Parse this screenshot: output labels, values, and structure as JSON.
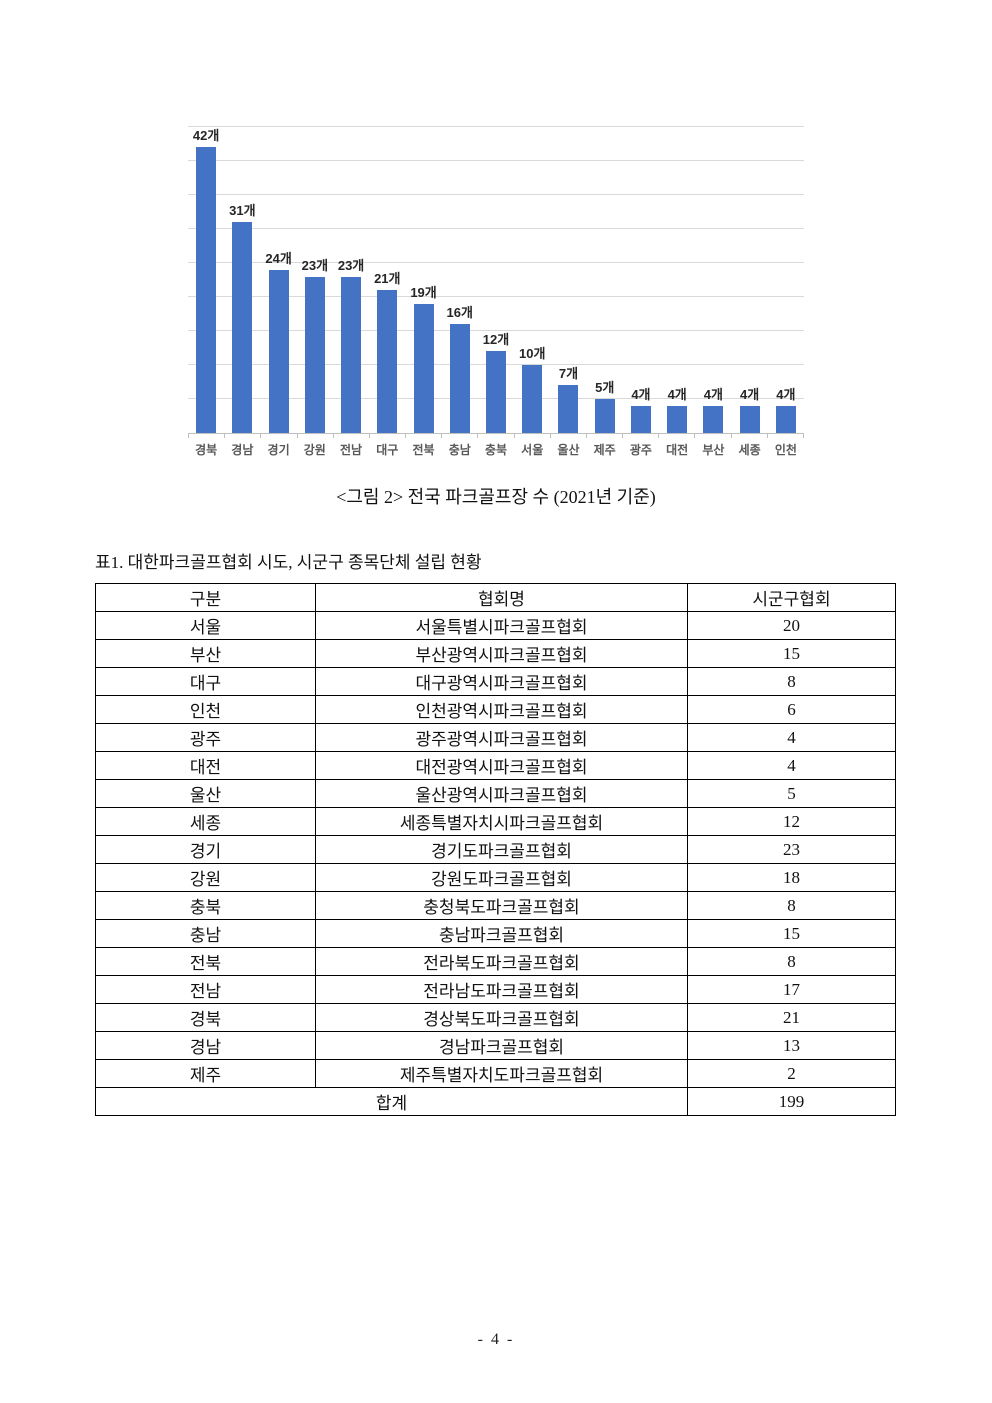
{
  "chart_data": {
    "type": "bar",
    "categories": [
      "경북",
      "경남",
      "경기",
      "강원",
      "전남",
      "대구",
      "전북",
      "충남",
      "충북",
      "서울",
      "울산",
      "제주",
      "광주",
      "대전",
      "부산",
      "세종",
      "인천"
    ],
    "values": [
      42,
      31,
      24,
      23,
      23,
      21,
      19,
      16,
      12,
      10,
      7,
      5,
      4,
      4,
      4,
      4,
      4
    ],
    "value_labels": [
      "42개",
      "31개",
      "24개",
      "23개",
      "23개",
      "21개",
      "19개",
      "16개",
      "12개",
      "10개",
      "7개",
      "5개",
      "4개",
      "4개",
      "4개",
      "4개",
      "4개"
    ],
    "title": "",
    "xlabel": "",
    "ylabel": "",
    "ylim": [
      0,
      45
    ],
    "grid_step": 5,
    "grid": true,
    "legend": false,
    "bar_color": "#4472C4",
    "gridline_color": "#d9d9d9",
    "axis_color": "#bfbfbf",
    "value_label_color": "#262626",
    "tick_label_color": "#595959"
  },
  "figure_caption": "<그림 2> 전국 파크골프장 수 (2021년 기준)",
  "table_title": "표1. 대한파크골프협회 시도, 시군구 종목단체 설립 현황",
  "table": {
    "headers": [
      "구분",
      "협회명",
      "시군구협회"
    ],
    "rows": [
      [
        "서울",
        "서울특별시파크골프협회",
        "20"
      ],
      [
        "부산",
        "부산광역시파크골프협회",
        "15"
      ],
      [
        "대구",
        "대구광역시파크골프협회",
        "8"
      ],
      [
        "인천",
        "인천광역시파크골프협회",
        "6"
      ],
      [
        "광주",
        "광주광역시파크골프협회",
        "4"
      ],
      [
        "대전",
        "대전광역시파크골프협회",
        "4"
      ],
      [
        "울산",
        "울산광역시파크골프협회",
        "5"
      ],
      [
        "세종",
        "세종특별자치시파크골프협회",
        "12"
      ],
      [
        "경기",
        "경기도파크골프협회",
        "23"
      ],
      [
        "강원",
        "강원도파크골프협회",
        "18"
      ],
      [
        "충북",
        "충청북도파크골프협회",
        "8"
      ],
      [
        "충남",
        "충남파크골프협회",
        "15"
      ],
      [
        "전북",
        "전라북도파크골프협회",
        "8"
      ],
      [
        "전남",
        "전라남도파크골프협회",
        "17"
      ],
      [
        "경북",
        "경상북도파크골프협회",
        "21"
      ],
      [
        "경남",
        "경남파크골프협회",
        "13"
      ],
      [
        "제주",
        "제주특별자치도파크골프협회",
        "2"
      ]
    ],
    "footer": {
      "label": "합계",
      "value": "199"
    }
  },
  "page_number": "- 4 -"
}
